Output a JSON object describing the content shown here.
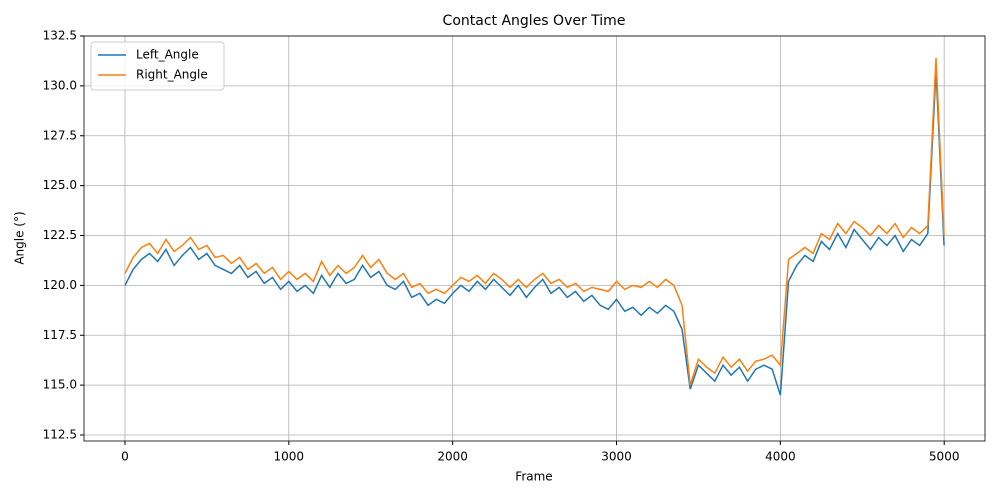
{
  "chart_data": {
    "type": "line",
    "title": "Contact Angles Over Time",
    "x_label": "Frame",
    "y_label": "Angle (°)",
    "x": [
      0,
      50,
      100,
      150,
      200,
      250,
      300,
      350,
      400,
      450,
      500,
      550,
      600,
      650,
      700,
      750,
      800,
      850,
      900,
      950,
      1000,
      1050,
      1100,
      1150,
      1200,
      1250,
      1300,
      1350,
      1400,
      1450,
      1500,
      1550,
      1600,
      1650,
      1700,
      1750,
      1800,
      1850,
      1900,
      1950,
      2000,
      2050,
      2100,
      2150,
      2200,
      2250,
      2300,
      2350,
      2400,
      2450,
      2500,
      2550,
      2600,
      2650,
      2700,
      2750,
      2800,
      2850,
      2900,
      2950,
      3000,
      3050,
      3100,
      3150,
      3200,
      3250,
      3300,
      3350,
      3400,
      3450,
      3500,
      3550,
      3600,
      3650,
      3700,
      3750,
      3800,
      3850,
      3900,
      3950,
      4000,
      4050,
      4100,
      4150,
      4200,
      4250,
      4300,
      4350,
      4400,
      4450,
      4500,
      4550,
      4600,
      4650,
      4700,
      4750,
      4800,
      4850,
      4900,
      4950,
      4999
    ],
    "series": [
      {
        "name": "Left_Angle",
        "color": "#1f77b4",
        "values": [
          120.0,
          120.8,
          121.3,
          121.6,
          121.2,
          121.8,
          121.0,
          121.5,
          121.9,
          121.3,
          121.6,
          121.0,
          120.8,
          120.6,
          121.0,
          120.4,
          120.7,
          120.1,
          120.4,
          119.8,
          120.2,
          119.7,
          120.0,
          119.6,
          120.5,
          119.9,
          120.6,
          120.1,
          120.3,
          121.0,
          120.4,
          120.7,
          120.0,
          119.8,
          120.2,
          119.4,
          119.6,
          119.0,
          119.3,
          119.1,
          119.6,
          120.0,
          119.7,
          120.2,
          119.8,
          120.3,
          119.9,
          119.5,
          120.0,
          119.4,
          119.9,
          120.3,
          119.6,
          119.9,
          119.4,
          119.7,
          119.2,
          119.5,
          119.0,
          118.8,
          119.3,
          118.7,
          118.9,
          118.5,
          118.9,
          118.6,
          119.0,
          118.7,
          117.8,
          114.8,
          116.0,
          115.6,
          115.2,
          116.0,
          115.5,
          115.9,
          115.2,
          115.8,
          116.0,
          115.8,
          114.5,
          120.2,
          121.0,
          121.5,
          121.2,
          122.2,
          121.8,
          122.6,
          121.9,
          122.8,
          122.3,
          121.8,
          122.4,
          122.0,
          122.5,
          121.7,
          122.3,
          122.0,
          122.6,
          130.8,
          122.0
        ]
      },
      {
        "name": "Right_Angle",
        "color": "#ff7f0e",
        "values": [
          120.6,
          121.4,
          121.9,
          122.1,
          121.6,
          122.3,
          121.7,
          122.0,
          122.4,
          121.8,
          122.0,
          121.4,
          121.5,
          121.1,
          121.4,
          120.8,
          121.1,
          120.6,
          120.9,
          120.3,
          120.7,
          120.3,
          120.6,
          120.2,
          121.2,
          120.5,
          121.0,
          120.6,
          120.9,
          121.5,
          120.9,
          121.3,
          120.6,
          120.3,
          120.6,
          119.9,
          120.1,
          119.6,
          119.8,
          119.6,
          120.0,
          120.4,
          120.2,
          120.5,
          120.1,
          120.6,
          120.3,
          119.9,
          120.3,
          119.9,
          120.3,
          120.6,
          120.1,
          120.3,
          119.9,
          120.1,
          119.7,
          119.9,
          119.8,
          119.7,
          120.2,
          119.8,
          120.0,
          119.9,
          120.2,
          119.9,
          120.3,
          120.0,
          119.0,
          115.0,
          116.3,
          115.9,
          115.6,
          116.4,
          115.9,
          116.3,
          115.7,
          116.2,
          116.3,
          116.5,
          116.0,
          121.3,
          121.6,
          121.9,
          121.6,
          122.6,
          122.3,
          123.1,
          122.6,
          123.2,
          122.9,
          122.5,
          123.0,
          122.6,
          123.1,
          122.4,
          122.9,
          122.6,
          123.0,
          131.4,
          122.5
        ]
      }
    ],
    "xlim": [
      -250,
      5249
    ],
    "ylim": [
      112.2,
      132.5
    ],
    "xticks": [
      0,
      1000,
      2000,
      3000,
      4000,
      5000
    ],
    "yticks": [
      112.5,
      {
        "value": 115,
        "label": "115.0"
      },
      117.5,
      {
        "value": 120,
        "label": "120.0"
      },
      122.5,
      {
        "value": 125,
        "label": "125.0"
      },
      127.5,
      {
        "value": 130,
        "label": "130.0"
      },
      132.5
    ],
    "grid": true,
    "legend": "upper left"
  }
}
